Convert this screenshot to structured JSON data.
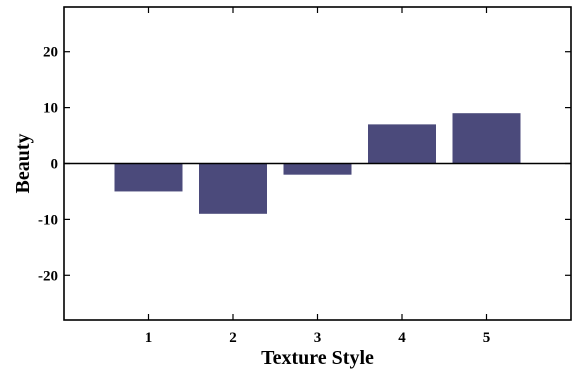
{
  "chart_data": {
    "type": "bar",
    "categories": [
      "1",
      "2",
      "3",
      "4",
      "5"
    ],
    "values": [
      -5,
      -9,
      -2,
      7,
      9
    ],
    "title": "",
    "xlabel": "Texture Style",
    "ylabel": "Beauty",
    "ylim": [
      -28,
      28
    ],
    "yticks": [
      20,
      10,
      0,
      -10,
      -20
    ],
    "ytick_labels": [
      "20",
      "10",
      "0",
      "-10",
      "-20"
    ],
    "grid": false,
    "bar_color": "#4b4a7b"
  }
}
